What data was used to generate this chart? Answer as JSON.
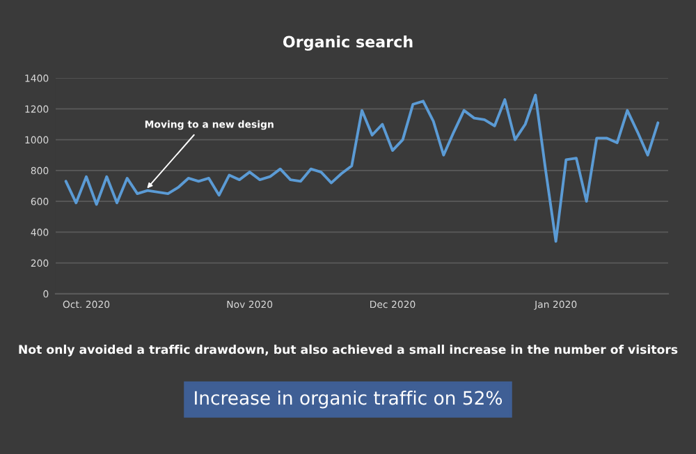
{
  "chart_data": {
    "type": "line",
    "title": "Organic search",
    "categories": [
      null,
      null,
      "Oct. 2020",
      null,
      null,
      null,
      null,
      null,
      null,
      null,
      null,
      null,
      null,
      null,
      null,
      null,
      null,
      null,
      "Nov 2020",
      null,
      null,
      null,
      null,
      null,
      null,
      null,
      null,
      null,
      null,
      null,
      null,
      null,
      "Dec 2020",
      null,
      null,
      null,
      null,
      null,
      null,
      null,
      null,
      null,
      null,
      null,
      null,
      null,
      null,
      null,
      "Jan 2020",
      null,
      null,
      null,
      null,
      null,
      null,
      null,
      null,
      null,
      null
    ],
    "series": [
      {
        "color": "#5b9bd5",
        "values": [
          730,
          590,
          760,
          580,
          760,
          590,
          750,
          650,
          670,
          660,
          650,
          690,
          750,
          730,
          750,
          640,
          770,
          740,
          790,
          740,
          760,
          810,
          740,
          730,
          810,
          790,
          720,
          780,
          830,
          1190,
          1030,
          1100,
          930,
          1000,
          1230,
          1250,
          1120,
          900,
          1050,
          1190,
          1140,
          1130,
          1090,
          1260,
          1000,
          1100,
          1290,
          800,
          340,
          870,
          880,
          600,
          1010,
          1010,
          980,
          1190,
          1050,
          900,
          1110
        ]
      }
    ],
    "ylim": [
      0,
      1400
    ],
    "yticks": [
      0,
      200,
      400,
      600,
      800,
      1000,
      1200,
      1400
    ],
    "grid": "y",
    "marker": "none",
    "line_style": "solid",
    "annotations": [
      "Moving to a new design",
      "Not only avoided a traffic drawdown, but also achieved a small increase in the number of visitors",
      "Increase in organic traffic on 52%"
    ]
  }
}
